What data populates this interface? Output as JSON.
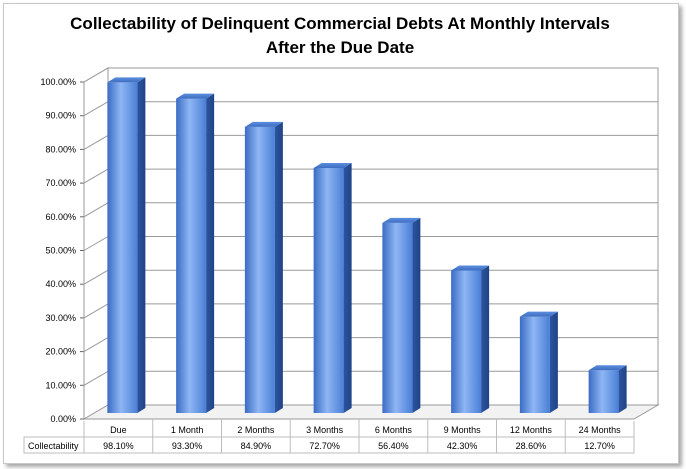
{
  "chart_data": {
    "type": "bar",
    "title_line1": "Collectability of Delinquent Commercial Debts At Monthly Intervals",
    "title_line2": "After the Due Date",
    "categories": [
      "Due",
      "1 Month",
      "2 Months",
      "3 Months",
      "6 Months",
      "9 Months",
      "12 Months",
      "24 Months"
    ],
    "series": [
      {
        "name": "Collectability",
        "values": [
          98.1,
          93.3,
          84.9,
          72.7,
          56.4,
          42.3,
          28.6,
          12.7
        ]
      }
    ],
    "data_labels": [
      "98.10%",
      "93.30%",
      "84.90%",
      "72.70%",
      "56.40%",
      "42.30%",
      "28.60%",
      "12.70%"
    ],
    "y_ticks": [
      "0.00%",
      "10.00%",
      "20.00%",
      "30.00%",
      "40.00%",
      "50.00%",
      "60.00%",
      "70.00%",
      "80.00%",
      "90.00%",
      "100.00%"
    ],
    "ylim": [
      0,
      100
    ],
    "grid": true,
    "data_table": true,
    "bar_color": "#4a80d8"
  }
}
